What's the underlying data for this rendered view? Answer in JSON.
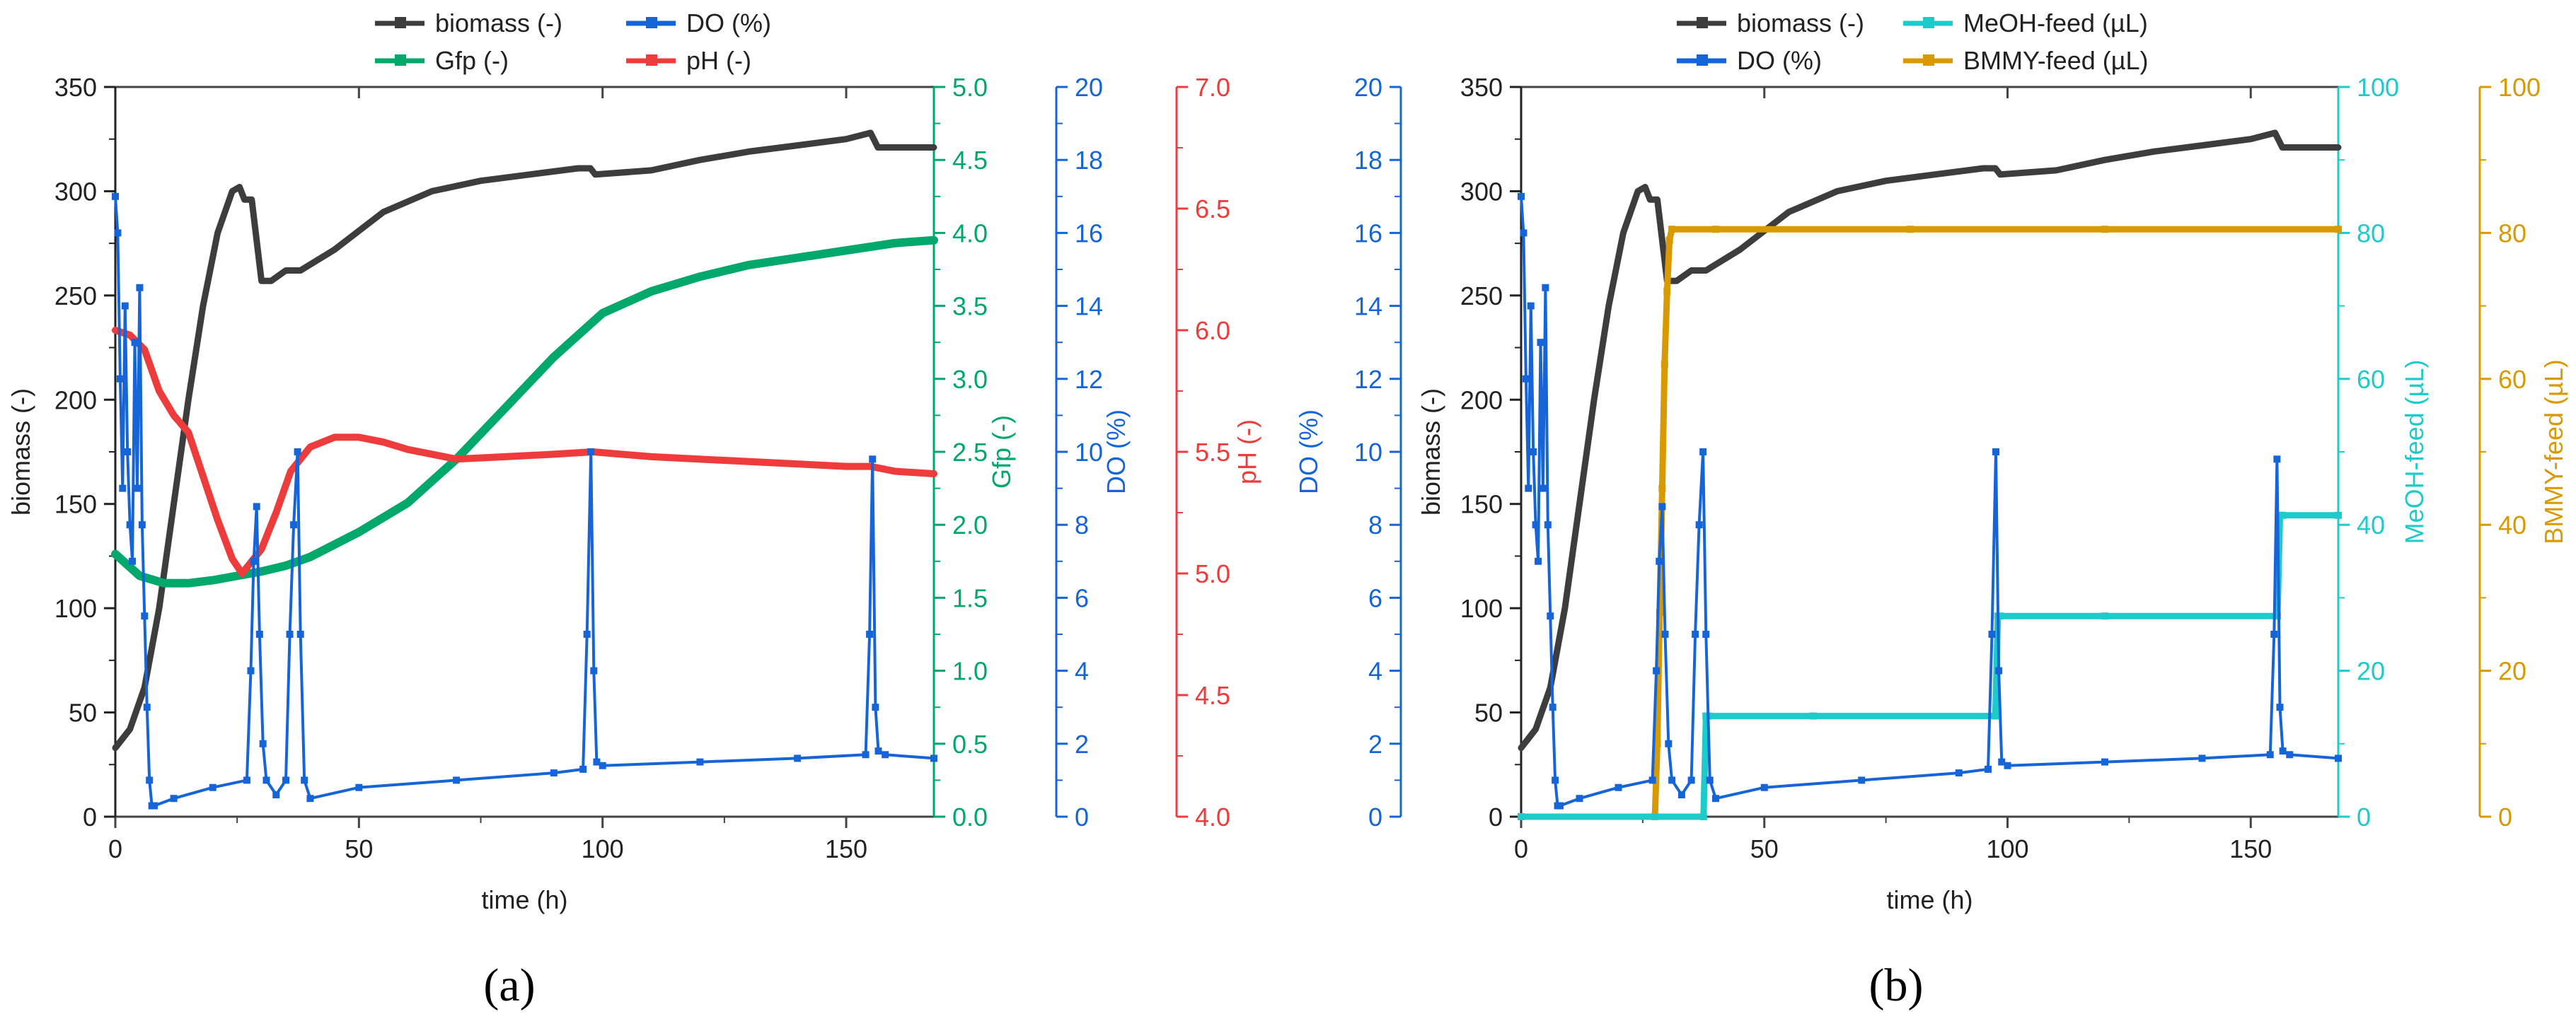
{
  "figure": {
    "caption_a": "(a)",
    "caption_b": "(b)"
  },
  "chart_data": [
    {
      "id": "a",
      "type": "line",
      "caption": "(a)",
      "xlabel": "time (h)",
      "xlim": [
        0,
        168
      ],
      "xticks": [
        0,
        50,
        100,
        150
      ],
      "axes": [
        {
          "key": "biomass",
          "label": "biomass (-)",
          "side": "left",
          "color": "#222222",
          "ylim": [
            0,
            350
          ],
          "ticks": [
            0,
            50,
            100,
            150,
            200,
            250,
            300,
            350
          ],
          "decimals": 0
        },
        {
          "key": "gfp",
          "label": "Gfp (-)",
          "side": "right",
          "color": "#00A86B",
          "ylim": [
            0,
            5.0
          ],
          "ticks": [
            0.0,
            0.5,
            1.0,
            1.5,
            2.0,
            2.5,
            3.0,
            3.5,
            4.0,
            4.5,
            5.0
          ],
          "decimals": 1
        },
        {
          "key": "do",
          "label": "DO (%)",
          "side": "right",
          "color": "#1565D8",
          "ylim": [
            0,
            20
          ],
          "ticks": [
            0,
            2,
            4,
            6,
            8,
            10,
            12,
            14,
            16,
            18,
            20
          ],
          "decimals": 0
        },
        {
          "key": "ph",
          "label": "pH (-)",
          "side": "right",
          "color": "#EE3B3B",
          "ylim": [
            4.0,
            7.0
          ],
          "ticks": [
            4.0,
            4.5,
            5.0,
            5.5,
            6.0,
            6.5,
            7.0
          ],
          "decimals": 1
        }
      ],
      "legend": [
        {
          "series": "biomass",
          "label": "biomass (-)"
        },
        {
          "series": "do",
          "label": "DO (%)"
        },
        {
          "series": "gfp",
          "label": "Gfp (-)"
        },
        {
          "series": "ph",
          "label": "pH (-)"
        }
      ],
      "series": [
        {
          "name": "biomass",
          "label": "biomass (-)",
          "axis": "biomass",
          "color": "#3d3d3d",
          "width": 9,
          "x": [
            0,
            3,
            6,
            9,
            12,
            15,
            18,
            21,
            24,
            25.5,
            26.5,
            28,
            30,
            32,
            35,
            38,
            45,
            55,
            65,
            75,
            85,
            95,
            97.5,
            98.5,
            110,
            120,
            130,
            140,
            150,
            155,
            156.5,
            160,
            165,
            168
          ],
          "y": [
            33,
            42,
            62,
            100,
            150,
            200,
            245,
            280,
            300,
            302,
            296,
            296,
            257,
            257,
            262,
            262,
            272,
            290,
            300,
            305,
            308,
            311,
            311,
            308,
            310,
            315,
            319,
            322,
            325,
            328,
            321,
            321,
            321,
            321
          ]
        },
        {
          "name": "gfp",
          "label": "Gfp (-)",
          "axis": "gfp",
          "color": "#00A86B",
          "width": 12,
          "x": [
            0,
            5,
            10,
            15,
            20,
            25,
            30,
            35,
            40,
            50,
            60,
            70,
            80,
            90,
            100,
            110,
            120,
            130,
            140,
            150,
            160,
            168
          ],
          "y": [
            1.8,
            1.65,
            1.6,
            1.6,
            1.62,
            1.65,
            1.68,
            1.72,
            1.78,
            1.95,
            2.15,
            2.45,
            2.8,
            3.15,
            3.45,
            3.6,
            3.7,
            3.78,
            3.83,
            3.88,
            3.93,
            3.95
          ]
        },
        {
          "name": "ph",
          "label": "pH (-)",
          "axis": "ph",
          "color": "#EE3B3B",
          "width": 10,
          "x": [
            0,
            3,
            6,
            9,
            12,
            15,
            18,
            21,
            24,
            26,
            28,
            30,
            33,
            36,
            40,
            45,
            50,
            55,
            60,
            70,
            80,
            90,
            98,
            110,
            130,
            150,
            155,
            160,
            168
          ],
          "y": [
            6.0,
            5.98,
            5.92,
            5.75,
            5.65,
            5.58,
            5.4,
            5.22,
            5.06,
            5.0,
            5.05,
            5.1,
            5.25,
            5.42,
            5.52,
            5.56,
            5.56,
            5.54,
            5.51,
            5.47,
            5.48,
            5.49,
            5.5,
            5.48,
            5.46,
            5.44,
            5.44,
            5.42,
            5.41
          ]
        },
        {
          "name": "do",
          "label": "DO (%)",
          "axis": "do",
          "color": "#1565D8",
          "width": 4,
          "marker": "square",
          "x": [
            0,
            0.5,
            1,
            1.5,
            2,
            2.5,
            3,
            3.5,
            4,
            4.5,
            5,
            5.5,
            6,
            6.5,
            7,
            7.5,
            8,
            12,
            20,
            27,
            27.8,
            28.4,
            29,
            29.6,
            30.3,
            31,
            33,
            35,
            35.8,
            36.6,
            37.4,
            38,
            38.8,
            40,
            50,
            70,
            90,
            96,
            96.8,
            97.6,
            98.2,
            98.8,
            100,
            120,
            140,
            154,
            154.8,
            155.4,
            156,
            156.6,
            158,
            168
          ],
          "y": [
            17,
            16,
            12,
            9,
            14,
            10,
            8,
            7,
            13,
            9,
            14.5,
            8,
            5.5,
            3,
            1,
            0.3,
            0.3,
            0.5,
            0.8,
            1,
            4,
            7,
            8.5,
            5,
            2,
            1,
            0.6,
            1,
            5,
            8,
            10,
            5,
            1,
            0.5,
            0.8,
            1,
            1.2,
            1.3,
            5,
            10,
            4,
            1.5,
            1.4,
            1.5,
            1.6,
            1.7,
            5,
            9.8,
            3,
            1.8,
            1.7,
            1.6
          ]
        }
      ]
    },
    {
      "id": "b",
      "type": "line",
      "caption": "(b)",
      "xlabel": "time (h)",
      "xlim": [
        0,
        168
      ],
      "xticks": [
        0,
        50,
        100,
        150
      ],
      "axes": [
        {
          "key": "do",
          "label": "DO (%)",
          "side": "outer-left",
          "color": "#1565D8",
          "ylim": [
            0,
            20
          ],
          "ticks": [
            0,
            2,
            4,
            6,
            8,
            10,
            12,
            14,
            16,
            18,
            20
          ],
          "decimals": 0
        },
        {
          "key": "biomass",
          "label": "biomass (-)",
          "side": "left",
          "color": "#222222",
          "ylim": [
            0,
            350
          ],
          "ticks": [
            0,
            50,
            100,
            150,
            200,
            250,
            300,
            350
          ],
          "decimals": 0
        },
        {
          "key": "meoh",
          "label": "MeOH-feed (µL)",
          "side": "right",
          "color": "#1ECBCB",
          "ylim": [
            0,
            100
          ],
          "ticks": [
            0,
            20,
            40,
            60,
            80,
            100
          ],
          "decimals": 0
        },
        {
          "key": "bmmy",
          "label": "BMMY-feed (µL)",
          "side": "right",
          "color": "#D89A00",
          "ylim": [
            0,
            100
          ],
          "ticks": [
            0,
            20,
            40,
            60,
            80,
            100
          ],
          "decimals": 0
        }
      ],
      "legend": [
        {
          "series": "biomass",
          "label": "biomass (-)"
        },
        {
          "series": "meoh",
          "label": "MeOH-feed (µL)"
        },
        {
          "series": "do",
          "label": "DO (%)"
        },
        {
          "series": "bmmy",
          "label": "BMMY-feed (µL)"
        }
      ],
      "series": [
        {
          "name": "biomass",
          "label": "biomass (-)",
          "axis": "biomass",
          "color": "#3d3d3d",
          "width": 9,
          "x": [
            0,
            3,
            6,
            9,
            12,
            15,
            18,
            21,
            24,
            25.5,
            26.5,
            28,
            30,
            32,
            35,
            38,
            45,
            55,
            65,
            75,
            85,
            95,
            97.5,
            98.5,
            110,
            120,
            130,
            140,
            150,
            155,
            156.5,
            160,
            165,
            168
          ],
          "y": [
            33,
            42,
            62,
            100,
            150,
            200,
            245,
            280,
            300,
            302,
            296,
            296,
            257,
            257,
            262,
            262,
            272,
            290,
            300,
            305,
            308,
            311,
            311,
            308,
            310,
            315,
            319,
            322,
            325,
            328,
            321,
            321,
            321,
            321
          ]
        },
        {
          "name": "bmmy",
          "label": "BMMY-feed (µL)",
          "axis": "bmmy",
          "color": "#D89A00",
          "width": 9,
          "marker": "square",
          "x": [
            0,
            27.5,
            28,
            28.5,
            29,
            29.5,
            30,
            30.5,
            31,
            40,
            80,
            120,
            168
          ],
          "y": [
            0,
            0,
            10,
            28,
            45,
            62,
            72,
            79,
            80.5,
            80.5,
            80.5,
            80.5,
            80.5
          ]
        },
        {
          "name": "meoh",
          "label": "MeOH-feed (µL)",
          "axis": "meoh",
          "color": "#1ECBCB",
          "width": 9,
          "marker": "square",
          "x": [
            0,
            37.5,
            38,
            38.5,
            60,
            97.5,
            98,
            98.5,
            120,
            155.5,
            156,
            156.5,
            168
          ],
          "y": [
            0,
            0,
            13.8,
            13.8,
            13.8,
            13.8,
            27.5,
            27.5,
            27.5,
            27.5,
            41.3,
            41.3,
            41.3
          ]
        },
        {
          "name": "do",
          "label": "DO (%)",
          "axis": "do",
          "color": "#1565D8",
          "width": 4,
          "marker": "square",
          "x": [
            0,
            0.5,
            1,
            1.5,
            2,
            2.5,
            3,
            3.5,
            4,
            4.5,
            5,
            5.5,
            6,
            6.5,
            7,
            7.5,
            8,
            12,
            20,
            27,
            27.8,
            28.4,
            29,
            29.6,
            30.3,
            31,
            33,
            35,
            35.8,
            36.6,
            37.4,
            38,
            38.8,
            40,
            50,
            70,
            90,
            96,
            96.8,
            97.6,
            98.2,
            98.8,
            100,
            120,
            140,
            154,
            154.8,
            155.4,
            156,
            156.6,
            158,
            168
          ],
          "y": [
            17,
            16,
            12,
            9,
            14,
            10,
            8,
            7,
            13,
            9,
            14.5,
            8,
            5.5,
            3,
            1,
            0.3,
            0.3,
            0.5,
            0.8,
            1,
            4,
            7,
            8.5,
            5,
            2,
            1,
            0.6,
            1,
            5,
            8,
            10,
            5,
            1,
            0.5,
            0.8,
            1,
            1.2,
            1.3,
            5,
            10,
            4,
            1.5,
            1.4,
            1.5,
            1.6,
            1.7,
            5,
            9.8,
            3,
            1.8,
            1.7,
            1.6
          ]
        }
      ]
    }
  ]
}
